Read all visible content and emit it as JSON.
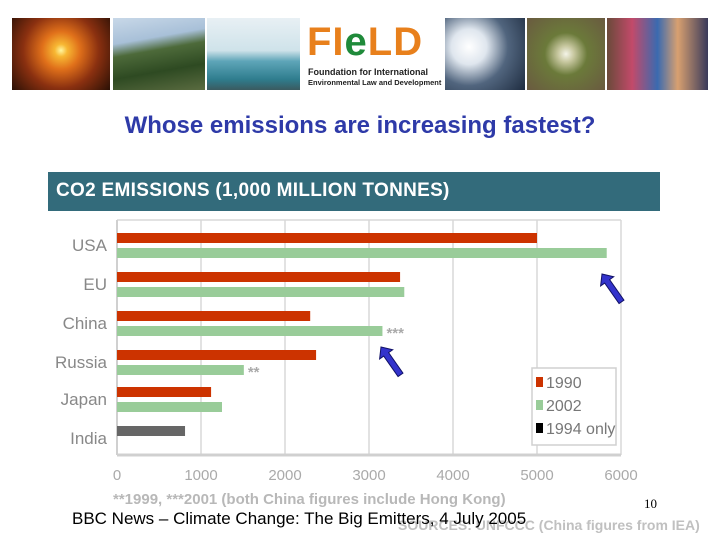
{
  "banner": {
    "logo_text": "FIeLD",
    "logo_subtitle_line1": "Foundation for International",
    "logo_subtitle_line2": "Environmental Law and Development"
  },
  "slide": {
    "title": "Whose emissions are increasing fastest?",
    "citation": "BBC News – Climate Change: The Big Emitters, 4 July 2005",
    "page_number": "10"
  },
  "chart_data": {
    "type": "bar",
    "orientation": "horizontal",
    "title": "CO2 EMISSIONS (1,000 MILLION TONNES)",
    "categories": [
      "USA",
      "EU",
      "China",
      "Russia",
      "Japan",
      "India"
    ],
    "series": [
      {
        "name": "1990",
        "color": "#cc3300",
        "values": [
          5000,
          3370,
          2300,
          2370,
          1120,
          null
        ]
      },
      {
        "name": "2002",
        "color": "#99cc99",
        "values": [
          5830,
          3420,
          3160,
          1510,
          1250,
          null
        ]
      },
      {
        "name": "1994 only",
        "color": "#666666",
        "values": [
          null,
          null,
          null,
          null,
          null,
          810
        ]
      }
    ],
    "annotations": [
      {
        "category": "China",
        "series": "2002",
        "text": "***"
      },
      {
        "category": "Russia",
        "series": "2002",
        "text": "**"
      }
    ],
    "xlim": [
      0,
      6000
    ],
    "xticks": [
      "0",
      "1000",
      "2000",
      "3000",
      "4000",
      "5000",
      "6000"
    ],
    "grid": true,
    "legend_placement": "bottom-right",
    "footnote": "**1999, ***2001 (both China figures include Hong Kong)",
    "source": "SOURCES: UNFCCC (China figures from IEA)",
    "arrows_highlight": [
      "USA 2002",
      "China 2002"
    ]
  }
}
